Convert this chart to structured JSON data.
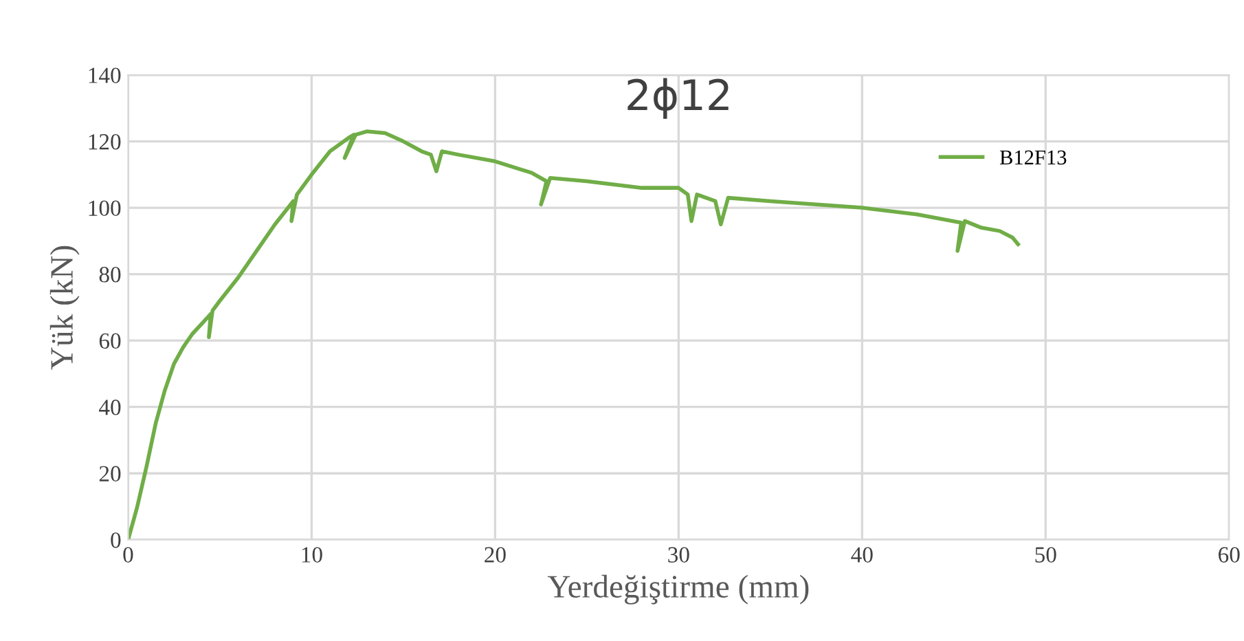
{
  "chart_data": {
    "type": "line",
    "title": "2ϕ12",
    "xlabel": "Yerdeğiştirme (mm)",
    "ylabel": "Yük (kN)",
    "xlim": [
      0,
      60
    ],
    "xticks": [
      0,
      10,
      20,
      30,
      40,
      50,
      60
    ],
    "ylim": [
      0,
      140
    ],
    "yticks": [
      0,
      20,
      40,
      60,
      80,
      100,
      120,
      140
    ],
    "grid": true,
    "legend": "top right",
    "marker": "none",
    "line_style": "solid",
    "series": [
      {
        "name": "B12F13",
        "color": "#70ad47",
        "x": [
          0,
          0.5,
          1,
          1.5,
          2,
          2.5,
          3,
          3.5,
          4,
          4.5,
          4.4,
          4.6,
          5,
          6,
          7,
          8,
          9,
          8.9,
          9.2,
          10,
          11,
          12,
          12.3,
          11.8,
          12.4,
          13,
          14,
          15,
          16,
          16.5,
          16.8,
          17.1,
          18,
          20,
          22,
          22.8,
          22.5,
          23,
          25,
          28,
          30,
          30.5,
          30.7,
          31,
          32,
          32.3,
          32.7,
          35,
          40,
          43,
          45.4,
          45.2,
          45.6,
          46.5,
          47.5,
          48.2,
          48.5
        ],
        "values": [
          0,
          10,
          22,
          35,
          45,
          53,
          58,
          62,
          65,
          68,
          61,
          69,
          72,
          79,
          87,
          95,
          102,
          96,
          104,
          110,
          117,
          121,
          122,
          115,
          122,
          123,
          122.5,
          120,
          117,
          116,
          111,
          117,
          116,
          114,
          110.5,
          108,
          101,
          109,
          108,
          106,
          106,
          104,
          96,
          104,
          102,
          95,
          103,
          102,
          100,
          98,
          95.5,
          87,
          96,
          94,
          93,
          91,
          89
        ]
      }
    ]
  }
}
